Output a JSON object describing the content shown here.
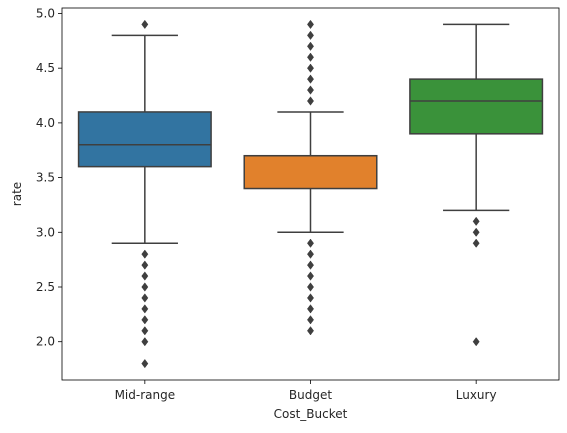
{
  "chart_data": {
    "type": "box",
    "xlabel": "Cost_Bucket",
    "ylabel": "rate",
    "ylim": [
      1.65,
      5.05
    ],
    "yticks": [
      2.0,
      2.5,
      3.0,
      3.5,
      4.0,
      4.5,
      5.0
    ],
    "ytick_labels": [
      "2.0",
      "2.5",
      "3.0",
      "3.5",
      "4.0",
      "4.5",
      "5.0"
    ],
    "grid": false,
    "categories": [
      "Mid-range",
      "Budget",
      "Luxury"
    ],
    "boxes": [
      {
        "category": "Mid-range",
        "color": "#3274a1",
        "whisker_low": 2.9,
        "q1": 3.6,
        "median": 3.8,
        "q3": 4.1,
        "whisker_high": 4.8,
        "outliers": [
          1.8,
          2.0,
          2.1,
          2.2,
          2.3,
          2.4,
          2.5,
          2.6,
          2.7,
          2.8,
          4.9
        ]
      },
      {
        "category": "Budget",
        "color": "#e1812c",
        "whisker_low": 3.0,
        "q1": 3.4,
        "median": 3.7,
        "q3": 3.7,
        "whisker_high": 4.1,
        "outliers": [
          2.1,
          2.2,
          2.3,
          2.4,
          2.5,
          2.6,
          2.7,
          2.8,
          2.9,
          4.2,
          4.3,
          4.4,
          4.5,
          4.6,
          4.7,
          4.8,
          4.9
        ]
      },
      {
        "category": "Luxury",
        "color": "#3a923a",
        "whisker_low": 3.2,
        "q1": 3.9,
        "median": 4.2,
        "q3": 4.4,
        "whisker_high": 4.9,
        "outliers": [
          2.0,
          2.9,
          3.0,
          3.1
        ]
      }
    ]
  }
}
